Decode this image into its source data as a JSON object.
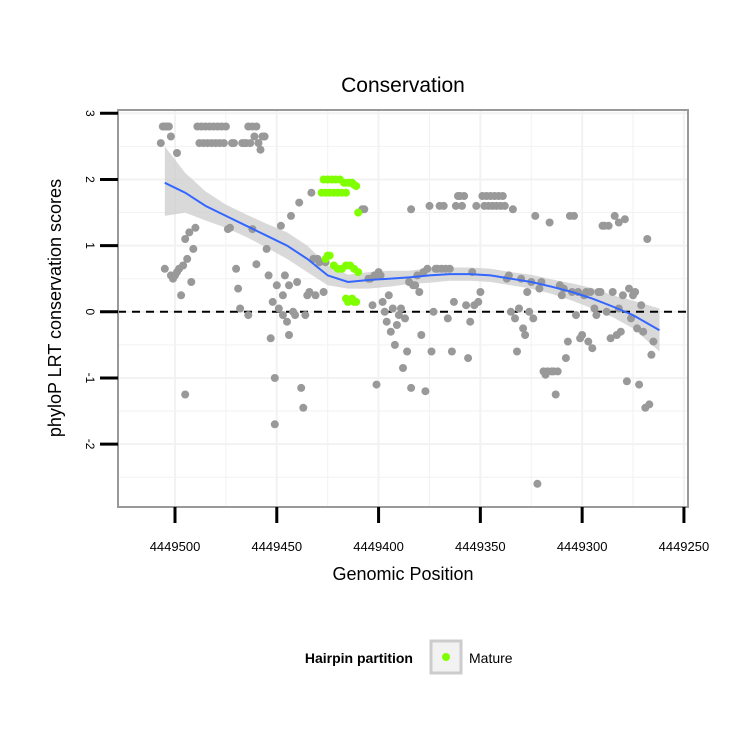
{
  "chart_data": {
    "type": "scatter",
    "title": "Conservation",
    "xlabel": "Genomic Position",
    "ylabel": "phyloP LRT conservation scores",
    "x_reversed": true,
    "xlim": [
      4449528,
      4449248
    ],
    "ylim": [
      -2.95,
      3.05
    ],
    "x_ticks": [
      4449500,
      4449450,
      4449400,
      4449350,
      4449300,
      4449250
    ],
    "x_tick_labels": [
      "4449500",
      "4449450",
      "4449400",
      "4449350",
      "4449300",
      "4449250"
    ],
    "y_ticks": [
      -2,
      -1,
      0,
      1,
      2,
      3
    ],
    "y_tick_labels": [
      "-2",
      "-1",
      "0",
      "1",
      "2",
      "3"
    ],
    "reference_line": 0,
    "legend": {
      "title": "Hairpin partition",
      "entries": [
        {
          "label": "Mature",
          "color": "#7fff00"
        }
      ]
    },
    "colors": {
      "other": "#999999",
      "mature": "#7fff00",
      "smooth": "#3366ff",
      "ribbon": "#cccccc",
      "panel_border": "#999999",
      "grid": "#f2f2f2"
    },
    "series": [
      {
        "name": "Other",
        "points": [
          [
            4449507,
            2.55
          ],
          [
            4449506,
            2.8
          ],
          [
            4449505,
            2.8
          ],
          [
            4449504,
            2.8
          ],
          [
            4449503,
            2.8
          ],
          [
            4449502,
            2.65
          ],
          [
            4449499,
            2.4
          ],
          [
            4449505,
            0.65
          ],
          [
            4449502,
            0.55
          ],
          [
            4449501,
            0.5
          ],
          [
            4449500,
            0.55
          ],
          [
            4449499,
            0.6
          ],
          [
            4449498,
            0.65
          ],
          [
            4449497,
            0.25
          ],
          [
            4449496,
            0.7
          ],
          [
            4449495,
            1.1
          ],
          [
            4449495,
            -1.25
          ],
          [
            4449494,
            0.8
          ],
          [
            4449493,
            1.2
          ],
          [
            4449492,
            0.45
          ],
          [
            4449491,
            0.95
          ],
          [
            4449490,
            1.27
          ],
          [
            4449489,
            2.8
          ],
          [
            4449488,
            2.55
          ],
          [
            4449487,
            2.8
          ],
          [
            4449486,
            2.55
          ],
          [
            4449485,
            2.8
          ],
          [
            4449484,
            2.55
          ],
          [
            4449483,
            2.8
          ],
          [
            4449482,
            2.55
          ],
          [
            4449481,
            2.8
          ],
          [
            4449480,
            2.55
          ],
          [
            4449479,
            2.8
          ],
          [
            4449478,
            2.55
          ],
          [
            4449477,
            2.8
          ],
          [
            4449476,
            2.55
          ],
          [
            4449475,
            2.8
          ],
          [
            4449474,
            1.25
          ],
          [
            4449473,
            1.27
          ],
          [
            4449472,
            2.55
          ],
          [
            4449471,
            2.55
          ],
          [
            4449470,
            0.65
          ],
          [
            4449469,
            0.35
          ],
          [
            4449468,
            0.05
          ],
          [
            4449467,
            2.55
          ],
          [
            4449466,
            2.55
          ],
          [
            4449465,
            2.55
          ],
          [
            4449464,
            2.8
          ],
          [
            4449464,
            -0.05
          ],
          [
            4449463,
            2.55
          ],
          [
            4449462,
            1.25
          ],
          [
            4449462,
            2.8
          ],
          [
            4449461,
            2.65
          ],
          [
            4449460,
            2.8
          ],
          [
            4449460,
            0.72
          ],
          [
            4449459,
            2.55
          ],
          [
            4449458,
            2.45
          ],
          [
            4449457,
            2.65
          ],
          [
            4449456,
            2.65
          ],
          [
            4449455,
            0.95
          ],
          [
            4449454,
            0.55
          ],
          [
            4449453,
            -0.4
          ],
          [
            4449452,
            0.15
          ],
          [
            4449451,
            -1.0
          ],
          [
            4449451,
            -1.7
          ],
          [
            4449450,
            0.4
          ],
          [
            4449449,
            0.05
          ],
          [
            4449448,
            1.3
          ],
          [
            4449447,
            -0.05
          ],
          [
            4449447,
            0.25
          ],
          [
            4449446,
            0.55
          ],
          [
            4449445,
            -0.15
          ],
          [
            4449444,
            -0.35
          ],
          [
            4449444,
            0.4
          ],
          [
            4449443,
            1.45
          ],
          [
            4449442,
            0.0
          ],
          [
            4449441,
            -0.05
          ],
          [
            4449440,
            0.45
          ],
          [
            4449439,
            1.65
          ],
          [
            4449438,
            -1.15
          ],
          [
            4449437,
            -1.45
          ],
          [
            4449436,
            -0.05
          ],
          [
            4449435,
            0.25
          ],
          [
            4449434,
            0.3
          ],
          [
            4449433,
            1.8
          ],
          [
            4449432,
            0.8
          ],
          [
            4449431,
            0.25
          ],
          [
            4449430,
            0.8
          ],
          [
            4449429,
            0.75
          ],
          [
            4449427,
            0.3
          ],
          [
            4449426,
            0.75
          ],
          [
            4449408,
            1.55
          ],
          [
            4449407,
            1.55
          ],
          [
            4449405,
            0.5
          ],
          [
            4449404,
            0.5
          ],
          [
            4449403,
            0.1
          ],
          [
            4449402,
            0.55
          ],
          [
            4449401,
            -1.1
          ],
          [
            4449400,
            0.6
          ],
          [
            4449399,
            0.55
          ],
          [
            4449398,
            0.15
          ],
          [
            4449397,
            0.0
          ],
          [
            4449396,
            -0.15
          ],
          [
            4449395,
            0.25
          ],
          [
            4449394,
            -0.3
          ],
          [
            4449393,
            0.05
          ],
          [
            4449392,
            -0.5
          ],
          [
            4449391,
            -0.2
          ],
          [
            4449390,
            -0.05
          ],
          [
            4449389,
            0.05
          ],
          [
            4449388,
            -0.85
          ],
          [
            4449387,
            -0.1
          ],
          [
            4449386,
            -0.6
          ],
          [
            4449385,
            0.45
          ],
          [
            4449384,
            -1.15
          ],
          [
            4449384,
            1.55
          ],
          [
            4449383,
            0.4
          ],
          [
            4449382,
            0.4
          ],
          [
            4449381,
            0.55
          ],
          [
            4449380,
            0.3
          ],
          [
            4449379,
            -0.35
          ],
          [
            4449378,
            0.6
          ],
          [
            4449377,
            -1.2
          ],
          [
            4449376,
            0.65
          ],
          [
            4449375,
            1.6
          ],
          [
            4449374,
            -0.6
          ],
          [
            4449373,
            0.0
          ],
          [
            4449372,
            0.65
          ],
          [
            4449371,
            0.65
          ],
          [
            4449370,
            1.6
          ],
          [
            4449369,
            0.65
          ],
          [
            4449368,
            1.6
          ],
          [
            4449367,
            0.65
          ],
          [
            4449366,
            -0.1
          ],
          [
            4449365,
            0.65
          ],
          [
            4449364,
            -0.6
          ],
          [
            4449363,
            0.15
          ],
          [
            4449362,
            1.6
          ],
          [
            4449361,
            1.75
          ],
          [
            4449360,
            1.75
          ],
          [
            4449359,
            1.6
          ],
          [
            4449358,
            1.75
          ],
          [
            4449357,
            0.1
          ],
          [
            4449356,
            -0.7
          ],
          [
            4449355,
            -0.15
          ],
          [
            4449354,
            0.6
          ],
          [
            4449353,
            0.1
          ],
          [
            4449352,
            1.6
          ],
          [
            4449351,
            0.15
          ],
          [
            4449350,
            0.3
          ],
          [
            4449349,
            1.75
          ],
          [
            4449348,
            1.6
          ],
          [
            4449347,
            1.75
          ],
          [
            4449346,
            1.6
          ],
          [
            4449345,
            1.75
          ],
          [
            4449344,
            1.6
          ],
          [
            4449343,
            1.75
          ],
          [
            4449342,
            1.6
          ],
          [
            4449341,
            1.75
          ],
          [
            4449340,
            1.6
          ],
          [
            4449339,
            1.75
          ],
          [
            4449338,
            1.6
          ],
          [
            4449337,
            0.5
          ],
          [
            4449336,
            0.55
          ],
          [
            4449335,
            0.0
          ],
          [
            4449334,
            1.55
          ],
          [
            4449333,
            -0.1
          ],
          [
            4449332,
            -0.6
          ],
          [
            4449331,
            0.05
          ],
          [
            4449330,
            0.5
          ],
          [
            4449329,
            -0.25
          ],
          [
            4449328,
            -0.35
          ],
          [
            4449327,
            0.3
          ],
          [
            4449326,
            0.0
          ],
          [
            4449325,
            0.45
          ],
          [
            4449324,
            -0.1
          ],
          [
            4449323,
            1.45
          ],
          [
            4449322,
            -2.6
          ],
          [
            4449321,
            0.35
          ],
          [
            4449320,
            0.45
          ],
          [
            4449319,
            -0.9
          ],
          [
            4449318,
            -0.95
          ],
          [
            4449317,
            -0.9
          ],
          [
            4449316,
            1.35
          ],
          [
            4449315,
            -0.9
          ],
          [
            4449314,
            -0.9
          ],
          [
            4449313,
            -1.25
          ],
          [
            4449312,
            -0.9
          ],
          [
            4449311,
            0.4
          ],
          [
            4449310,
            0.25
          ],
          [
            4449309,
            0.35
          ],
          [
            4449308,
            -0.7
          ],
          [
            4449307,
            -0.45
          ],
          [
            4449306,
            1.45
          ],
          [
            4449305,
            0.3
          ],
          [
            4449304,
            1.45
          ],
          [
            4449303,
            -0.05
          ],
          [
            4449302,
            0.3
          ],
          [
            4449301,
            -0.4
          ],
          [
            4449300,
            -0.35
          ],
          [
            4449299,
            0.25
          ],
          [
            4449298,
            0.3
          ],
          [
            4449297,
            -0.45
          ],
          [
            4449296,
            0.3
          ],
          [
            4449295,
            -0.55
          ],
          [
            4449294,
            0.05
          ],
          [
            4449293,
            -0.05
          ],
          [
            4449292,
            0.3
          ],
          [
            4449291,
            0.3
          ],
          [
            4449290,
            1.3
          ],
          [
            4449289,
            1.3
          ],
          [
            4449288,
            0.0
          ],
          [
            4449287,
            1.3
          ],
          [
            4449286,
            -0.4
          ],
          [
            4449285,
            0.3
          ],
          [
            4449284,
            1.45
          ],
          [
            4449283,
            -0.35
          ],
          [
            4449282,
            1.35
          ],
          [
            4449282,
            0.05
          ],
          [
            4449281,
            -0.3
          ],
          [
            4449280,
            0.25
          ],
          [
            4449279,
            1.4
          ],
          [
            4449278,
            -1.05
          ],
          [
            4449277,
            0.35
          ],
          [
            4449276,
            -0.1
          ],
          [
            4449275,
            0.25
          ],
          [
            4449274,
            0.3
          ],
          [
            4449273,
            -0.25
          ],
          [
            4449272,
            -1.1
          ],
          [
            4449271,
            0.1
          ],
          [
            4449270,
            -0.3
          ],
          [
            4449269,
            -1.45
          ],
          [
            4449268,
            1.1
          ],
          [
            4449267,
            -1.4
          ],
          [
            4449266,
            -0.65
          ],
          [
            4449265,
            -0.45
          ]
        ]
      },
      {
        "name": "Mature",
        "points": [
          [
            4449428,
            1.8
          ],
          [
            4449427,
            2.0
          ],
          [
            4449426,
            1.8
          ],
          [
            4449425,
            2.0
          ],
          [
            4449424,
            1.8
          ],
          [
            4449423,
            2.0
          ],
          [
            4449422,
            1.8
          ],
          [
            4449421,
            2.0
          ],
          [
            4449420,
            1.8
          ],
          [
            4449419,
            2.0
          ],
          [
            4449418,
            1.8
          ],
          [
            4449417,
            1.95
          ],
          [
            4449416,
            1.8
          ],
          [
            4449415,
            1.95
          ],
          [
            4449414,
            1.95
          ],
          [
            4449413,
            1.95
          ],
          [
            4449412,
            1.92
          ],
          [
            4449411,
            1.9
          ],
          [
            4449410,
            1.5
          ],
          [
            4449426,
            0.8
          ],
          [
            4449425,
            0.85
          ],
          [
            4449424,
            0.85
          ],
          [
            4449422,
            0.7
          ],
          [
            4449420,
            0.65
          ],
          [
            4449418,
            0.65
          ],
          [
            4449416,
            0.7
          ],
          [
            4449414,
            0.7
          ],
          [
            4449412,
            0.65
          ],
          [
            4449410,
            0.6
          ],
          [
            4449416,
            0.2
          ],
          [
            4449415,
            0.15
          ],
          [
            4449413,
            0.2
          ],
          [
            4449412,
            0.15
          ],
          [
            4449411,
            0.15
          ]
        ]
      }
    ],
    "smooth": {
      "x": [
        4449505,
        4449495,
        4449485,
        4449475,
        4449465,
        4449455,
        4449445,
        4449435,
        4449425,
        4449415,
        4449405,
        4449395,
        4449385,
        4449375,
        4449365,
        4449355,
        4449345,
        4449335,
        4449325,
        4449315,
        4449305,
        4449295,
        4449285,
        4449275,
        4449262
      ],
      "y": [
        1.95,
        1.8,
        1.6,
        1.45,
        1.3,
        1.15,
        1.0,
        0.8,
        0.55,
        0.45,
        0.48,
        0.5,
        0.52,
        0.55,
        0.57,
        0.57,
        0.55,
        0.5,
        0.45,
        0.38,
        0.3,
        0.2,
        0.08,
        -0.05,
        -0.28
      ],
      "lower": [
        1.45,
        1.5,
        1.38,
        1.27,
        1.13,
        0.97,
        0.8,
        0.6,
        0.4,
        0.35,
        0.35,
        0.38,
        0.42,
        0.44,
        0.47,
        0.47,
        0.45,
        0.4,
        0.35,
        0.27,
        0.17,
        0.05,
        -0.08,
        -0.25,
        -0.6
      ],
      "upper": [
        2.5,
        2.1,
        1.82,
        1.62,
        1.47,
        1.33,
        1.2,
        1.0,
        0.7,
        0.56,
        0.6,
        0.62,
        0.62,
        0.66,
        0.67,
        0.67,
        0.65,
        0.6,
        0.56,
        0.49,
        0.43,
        0.36,
        0.25,
        0.17,
        0.05
      ]
    }
  }
}
